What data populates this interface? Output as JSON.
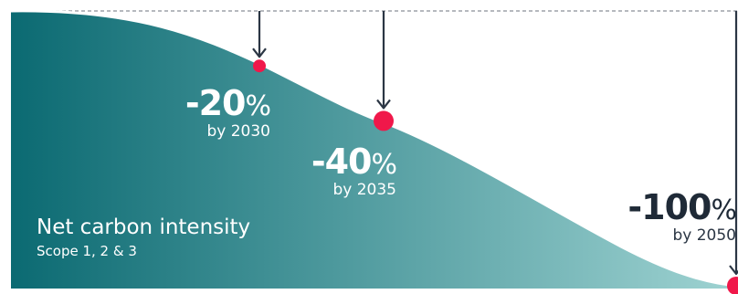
{
  "chart_data": {
    "type": "area",
    "title": "Net carbon intensity",
    "subtitle": "Scope 1, 2 & 3",
    "points": [
      {
        "year": "2030",
        "pct_label": "-20",
        "unit": "%",
        "year_label": "by 2030",
        "value": -20
      },
      {
        "year": "2035",
        "pct_label": "-40",
        "unit": "%",
        "year_label": "by 2035",
        "value": -40
      },
      {
        "year": "2050",
        "pct_label": "-100",
        "unit": "%",
        "year_label": "by 2050",
        "value": -100
      }
    ],
    "colors": {
      "fill_start": "#0b6a72",
      "fill_end": "#9fd3d2",
      "marker": "#f0184a",
      "arrow": "#2b3644",
      "baseline": "#8a8f96"
    }
  }
}
